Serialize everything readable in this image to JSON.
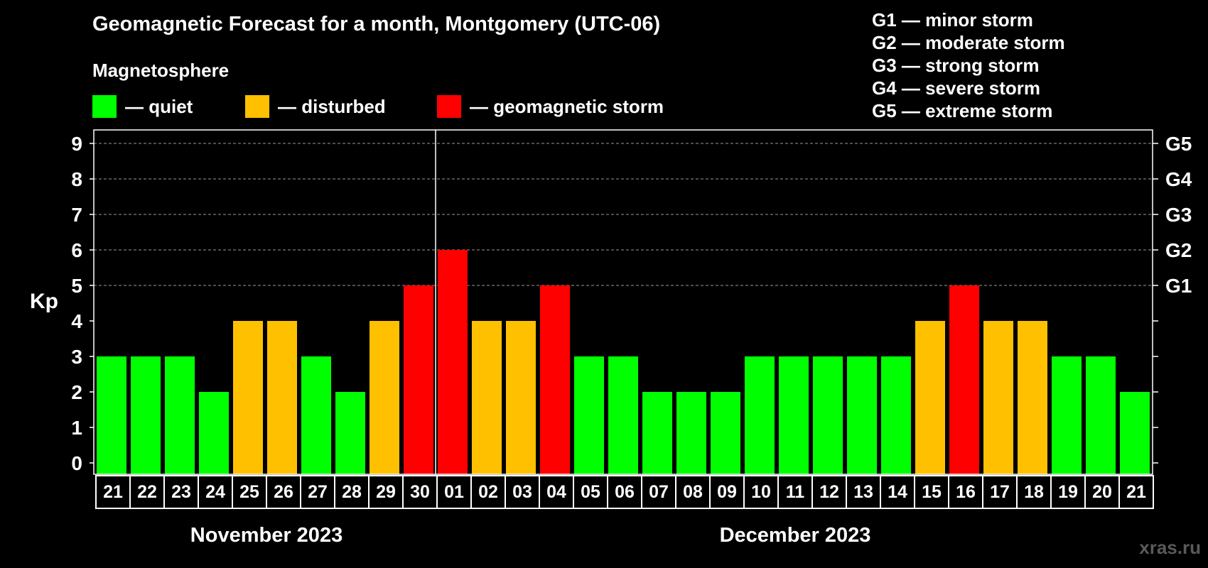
{
  "chart_data": {
    "type": "bar",
    "title": "Geomagnetic Forecast for a month, Montgomery (UTC-06)",
    "subtitle": "Magnetosphere",
    "ylabel": "Kp",
    "ylim": [
      0,
      9
    ],
    "yticks": [
      "0",
      "1",
      "2",
      "3",
      "4",
      "5",
      "6",
      "7",
      "8",
      "9"
    ],
    "right_axis_labels": [
      {
        "kp": 5,
        "label": "G1"
      },
      {
        "kp": 6,
        "label": "G2"
      },
      {
        "kp": 7,
        "label": "G3"
      },
      {
        "kp": 8,
        "label": "G4"
      },
      {
        "kp": 9,
        "label": "G5"
      }
    ],
    "categories": [
      "21",
      "22",
      "23",
      "24",
      "25",
      "26",
      "27",
      "28",
      "29",
      "30",
      "01",
      "02",
      "03",
      "04",
      "05",
      "06",
      "07",
      "08",
      "09",
      "10",
      "11",
      "12",
      "13",
      "14",
      "15",
      "16",
      "17",
      "18",
      "19",
      "20",
      "21"
    ],
    "values": [
      3,
      3,
      3,
      2,
      4,
      4,
      3,
      2,
      4,
      5,
      6,
      4,
      4,
      5,
      3,
      3,
      2,
      2,
      2,
      3,
      3,
      3,
      3,
      3,
      4,
      5,
      4,
      4,
      3,
      3,
      2
    ],
    "months": [
      {
        "label": "November 2023",
        "start": 0,
        "end": 9
      },
      {
        "label": "December 2023",
        "start": 10,
        "end": 30
      }
    ],
    "legend": [
      {
        "label": "— quiet",
        "color": "#00ff00"
      },
      {
        "label": "— disturbed",
        "color": "#ffc000"
      },
      {
        "label": "— geomagnetic storm",
        "color": "#ff0000"
      }
    ],
    "storm_levels": [
      "G1 — minor storm",
      "G2 — moderate storm",
      "G3 — strong storm",
      "G4 — severe storm",
      "G5 — extreme storm"
    ],
    "grid": true
  },
  "watermark": "xras.ru"
}
